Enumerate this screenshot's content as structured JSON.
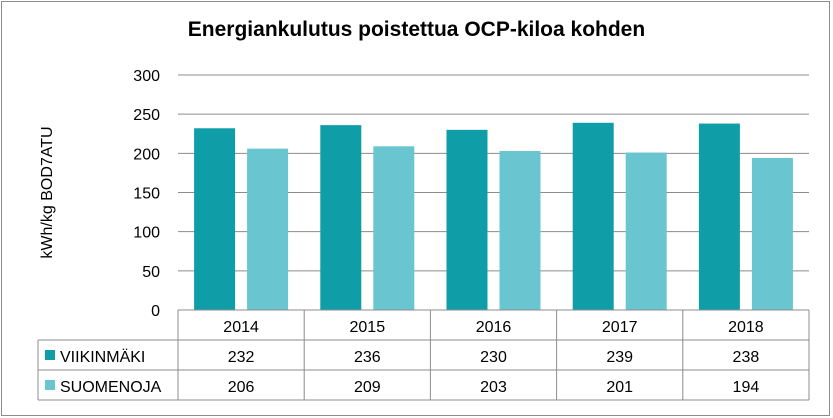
{
  "chart_data": {
    "type": "bar",
    "title": "Energiankulutus poistettua OCP-kiloa kohden",
    "ylabel": "kWh/kg BOD7ATU",
    "xlabel": "",
    "ylim": [
      0,
      300
    ],
    "yticks": [
      0,
      50,
      100,
      150,
      200,
      250,
      300
    ],
    "categories": [
      "2014",
      "2015",
      "2016",
      "2017",
      "2018"
    ],
    "series": [
      {
        "name": "VIIKINMÄKI",
        "color": "#0f9ea8",
        "values": [
          232,
          236,
          230,
          239,
          238
        ]
      },
      {
        "name": "SUOMENOJA",
        "color": "#69c5cf",
        "values": [
          206,
          209,
          203,
          201,
          194
        ]
      }
    ],
    "grid": true,
    "legend": "data-table"
  }
}
